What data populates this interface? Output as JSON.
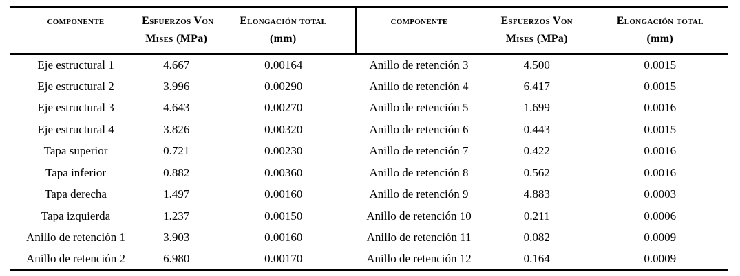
{
  "page": {
    "background": "#ffffff"
  },
  "colors": {
    "text": "#000000",
    "rule": "#000000"
  },
  "table": {
    "columns": [
      {
        "line1_sc": "componente",
        "line2_sc": "",
        "line2_normal": ""
      },
      {
        "line1_sc": "Esfuerzos Von",
        "line2_sc": "Mises",
        "line2_normal": "(MPa)"
      },
      {
        "line1_sc": "Elongación total",
        "line2_sc": "",
        "line2_normal": "(mm)"
      },
      {
        "line1_sc": "componente",
        "line2_sc": "",
        "line2_normal": ""
      },
      {
        "line1_sc": "Esfuerzos Von",
        "line2_sc": "Mises",
        "line2_normal": "(MPa)"
      },
      {
        "line1_sc": "Elongación total",
        "line2_sc": "",
        "line2_normal": "(mm)"
      }
    ],
    "rows": [
      [
        "Eje estructural 1",
        "4.667",
        "0.00164",
        "Anillo de retención 3",
        "4.500",
        "0.0015"
      ],
      [
        "Eje estructural 2",
        "3.996",
        "0.00290",
        "Anillo de retención 4",
        "6.417",
        "0.0015"
      ],
      [
        "Eje estructural 3",
        "4.643",
        "0.00270",
        "Anillo de retención 5",
        "1.699",
        "0.0016"
      ],
      [
        "Eje estructural 4",
        "3.826",
        "0.00320",
        "Anillo de retención 6",
        "0.443",
        "0.0015"
      ],
      [
        "Tapa superior",
        "0.721",
        "0.00230",
        "Anillo de retención 7",
        "0.422",
        "0.0016"
      ],
      [
        "Tapa inferior",
        "0.882",
        "0.00360",
        "Anillo de retención 8",
        "0.562",
        "0.0016"
      ],
      [
        "Tapa derecha",
        "1.497",
        "0.00160",
        "Anillo de retención 9",
        "4.883",
        "0.0003"
      ],
      [
        "Tapa izquierda",
        "1.237",
        "0.00150",
        "Anillo de retención 10",
        "0.211",
        "0.0006"
      ],
      [
        "Anillo de retención 1",
        "3.903",
        "0.00160",
        "Anillo de retención 11",
        "0.082",
        "0.0009"
      ],
      [
        "Anillo de retención 2",
        "6.980",
        "0.00170",
        "Anillo de retención 12",
        "0.164",
        "0.0009"
      ]
    ]
  },
  "chart_data": {
    "type": "table",
    "title": "",
    "columns": [
      "Componente",
      "Esfuerzos Von Mises (MPa)",
      "Elongación total (mm)"
    ],
    "records": [
      {
        "componente": "Eje estructural 1",
        "esfuerzos_von_mises_mpa": 4.667,
        "elongacion_total_mm": 0.00164
      },
      {
        "componente": "Eje estructural 2",
        "esfuerzos_von_mises_mpa": 3.996,
        "elongacion_total_mm": 0.0029
      },
      {
        "componente": "Eje estructural 3",
        "esfuerzos_von_mises_mpa": 4.643,
        "elongacion_total_mm": 0.0027
      },
      {
        "componente": "Eje estructural 4",
        "esfuerzos_von_mises_mpa": 3.826,
        "elongacion_total_mm": 0.0032
      },
      {
        "componente": "Tapa superior",
        "esfuerzos_von_mises_mpa": 0.721,
        "elongacion_total_mm": 0.0023
      },
      {
        "componente": "Tapa inferior",
        "esfuerzos_von_mises_mpa": 0.882,
        "elongacion_total_mm": 0.0036
      },
      {
        "componente": "Tapa derecha",
        "esfuerzos_von_mises_mpa": 1.497,
        "elongacion_total_mm": 0.0016
      },
      {
        "componente": "Tapa izquierda",
        "esfuerzos_von_mises_mpa": 1.237,
        "elongacion_total_mm": 0.0015
      },
      {
        "componente": "Anillo de retención 1",
        "esfuerzos_von_mises_mpa": 3.903,
        "elongacion_total_mm": 0.0016
      },
      {
        "componente": "Anillo de retención 2",
        "esfuerzos_von_mises_mpa": 6.98,
        "elongacion_total_mm": 0.0017
      },
      {
        "componente": "Anillo de retención 3",
        "esfuerzos_von_mises_mpa": 4.5,
        "elongacion_total_mm": 0.0015
      },
      {
        "componente": "Anillo de retención 4",
        "esfuerzos_von_mises_mpa": 6.417,
        "elongacion_total_mm": 0.0015
      },
      {
        "componente": "Anillo de retención 5",
        "esfuerzos_von_mises_mpa": 1.699,
        "elongacion_total_mm": 0.0016
      },
      {
        "componente": "Anillo de retención 6",
        "esfuerzos_von_mises_mpa": 0.443,
        "elongacion_total_mm": 0.0015
      },
      {
        "componente": "Anillo de retención 7",
        "esfuerzos_von_mises_mpa": 0.422,
        "elongacion_total_mm": 0.0016
      },
      {
        "componente": "Anillo de retención 8",
        "esfuerzos_von_mises_mpa": 0.562,
        "elongacion_total_mm": 0.0016
      },
      {
        "componente": "Anillo de retención 9",
        "esfuerzos_von_mises_mpa": 4.883,
        "elongacion_total_mm": 0.0003
      },
      {
        "componente": "Anillo de retención 10",
        "esfuerzos_von_mises_mpa": 0.211,
        "elongacion_total_mm": 0.0006
      },
      {
        "componente": "Anillo de retención 11",
        "esfuerzos_von_mises_mpa": 0.082,
        "elongacion_total_mm": 0.0009
      },
      {
        "componente": "Anillo de retención 12",
        "esfuerzos_von_mises_mpa": 0.164,
        "elongacion_total_mm": 0.0009
      }
    ]
  }
}
